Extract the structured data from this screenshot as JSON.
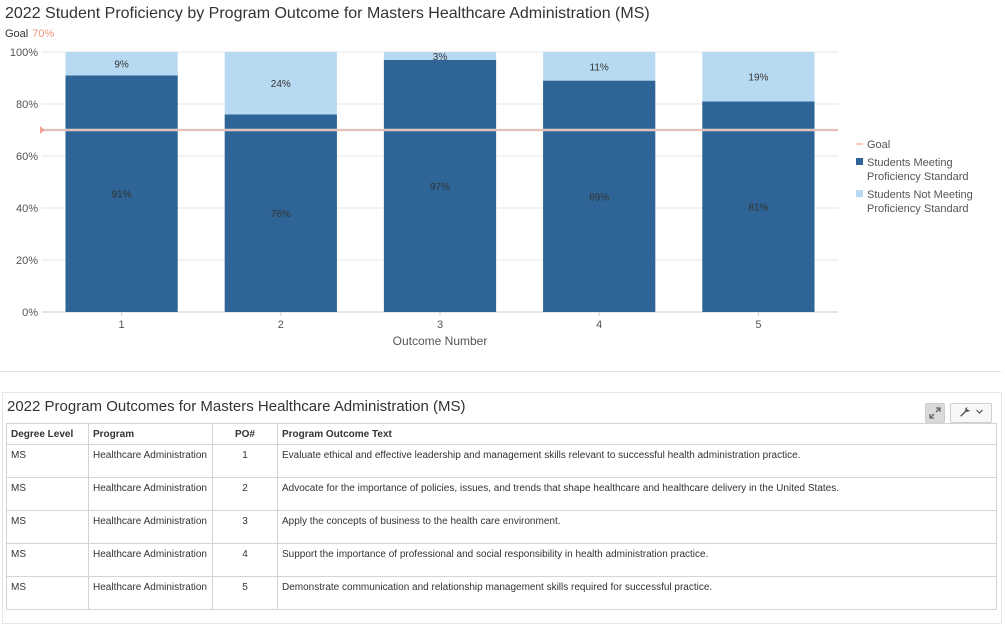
{
  "chart_data": {
    "type": "bar",
    "stacked": true,
    "title": "2022 Student Proficiency by Program Outcome for Masters Healthcare Administration (MS)",
    "goal_label": "Goal",
    "goal_value_label": "70%",
    "goal": 70,
    "xlabel": "Outcome Number",
    "ylabel": "",
    "ylim": [
      0,
      100
    ],
    "yticks": [
      "0%",
      "20%",
      "40%",
      "60%",
      "80%",
      "100%"
    ],
    "categories": [
      "1",
      "2",
      "3",
      "4",
      "5"
    ],
    "series": [
      {
        "name": "Students Meeting Proficiency Standard",
        "values": [
          91,
          76,
          97,
          89,
          81
        ],
        "labels": [
          "91%",
          "76%",
          "97%",
          "89%",
          "81%"
        ],
        "color": "#2e6496"
      },
      {
        "name": "Students Not Meeting Proficiency Standard",
        "values": [
          9,
          24,
          3,
          11,
          19
        ],
        "labels": [
          "9%",
          "24%",
          "3%",
          "11%",
          "19%"
        ],
        "color": "#b8d9f2"
      }
    ],
    "legend": {
      "placement": "right",
      "items": [
        {
          "lines": [
            "Goal"
          ],
          "kind": "line",
          "color": "#f2a593"
        },
        {
          "lines": [
            "Students Meeting",
            "Proficiency Standard"
          ],
          "kind": "box",
          "color": "#2e6496"
        },
        {
          "lines": [
            "Students Not Meeting",
            "Proficiency Standard"
          ],
          "kind": "box",
          "color": "#b8d9f2"
        }
      ]
    },
    "goal_color": "#f2a593",
    "grid": true
  },
  "table": {
    "title": "2022 Program Outcomes for Masters Healthcare Administration (MS)",
    "headers": [
      "Degree Level",
      "Program",
      "PO#",
      "Program Outcome Text"
    ],
    "rows": [
      {
        "degree": "MS",
        "program": "Healthcare Administration",
        "po": "1",
        "text": "Evaluate ethical and effective leadership and management skills relevant to successful health administration practice."
      },
      {
        "degree": "MS",
        "program": "Healthcare Administration",
        "po": "2",
        "text": "Advocate for the importance of policies, issues, and trends that shape healthcare and healthcare delivery in the United States."
      },
      {
        "degree": "MS",
        "program": "Healthcare Administration",
        "po": "3",
        "text": "Apply the concepts of business to the health care environment."
      },
      {
        "degree": "MS",
        "program": "Healthcare Administration",
        "po": "4",
        "text": "Support the importance of professional and social responsibility in health administration practice."
      },
      {
        "degree": "MS",
        "program": "Healthcare Administration",
        "po": "5",
        "text": "Demonstrate communication and relationship management skills required for successful practice."
      }
    ],
    "tools": {
      "expand_icon": "expand-icon",
      "wrench_icon": "wrench-icon",
      "chevron_icon": "chevron-down-icon"
    }
  }
}
